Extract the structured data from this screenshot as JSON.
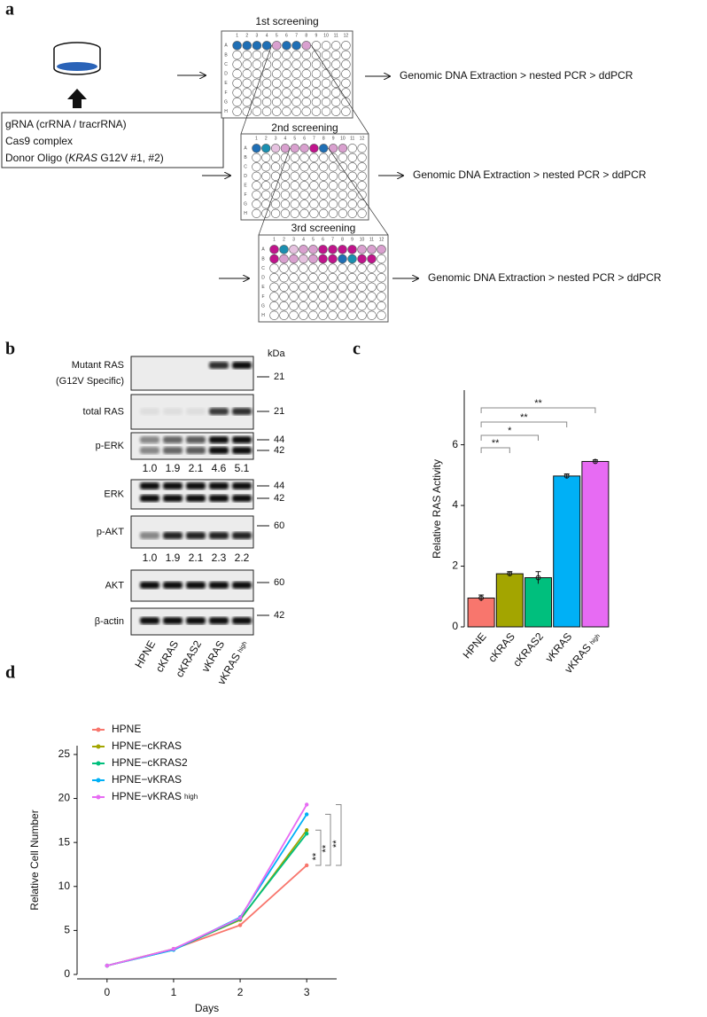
{
  "panel_a": {
    "label": "a",
    "reagents": [
      "gRNA (crRNA / tracrRNA)",
      "Cas9 complex"
    ],
    "donor": [
      "Donor Oligo (",
      "KRAS",
      " G12V #1, #2)"
    ],
    "plate_rows": [
      "A",
      "B",
      "C",
      "D",
      "E",
      "F",
      "G",
      "H"
    ],
    "plate_cols": [
      1,
      2,
      3,
      4,
      5,
      6,
      7,
      8,
      9,
      10,
      11,
      12
    ],
    "screenings": [
      {
        "title": "1st screening",
        "result": "Genomic DNA Extraction > nested PCR > ddPCR"
      },
      {
        "title": "2nd screening",
        "result": "Genomic DNA Extraction > nested PCR > ddPCR"
      },
      {
        "title": "3rd screening",
        "result": "Genomic DNA Extraction > nested PCR > ddPCR"
      }
    ]
  },
  "panel_b": {
    "label": "b",
    "unit": "kDa",
    "blots": [
      {
        "name": [
          "Mutant RAS",
          "(G12V Specific)"
        ],
        "markers": [
          21
        ]
      },
      {
        "name": [
          "total RAS"
        ],
        "markers": [
          21
        ]
      },
      {
        "name": [
          "p-ERK"
        ],
        "markers": [
          44,
          42
        ],
        "quant": [
          "1.0",
          "1.9",
          "2.1",
          "4.6",
          "5.1"
        ]
      },
      {
        "name": [
          "ERK"
        ],
        "markers": [
          44,
          42
        ]
      },
      {
        "name": [
          "p-AKT"
        ],
        "markers": [
          60
        ],
        "quant": [
          "1.0",
          "1.9",
          "2.1",
          "2.3",
          "2.2"
        ]
      },
      {
        "name": [
          "AKT"
        ],
        "markers": [
          60
        ]
      },
      {
        "name": [
          "β-actin"
        ],
        "markers": [
          42
        ]
      }
    ],
    "lanes": [
      "HPNE",
      "cKRAS",
      "cKRAS2",
      "vKRAS",
      "vKRAS"
    ],
    "lane_subscripts": [
      null,
      null,
      null,
      null,
      "high"
    ]
  },
  "chart_data": [
    {
      "type": "bar",
      "panel_label": "c",
      "ylabel": "Relative RAS Activity",
      "categories": [
        "HPNE",
        "cKRAS",
        "cKRAS2",
        "vKRAS",
        "vKRAS"
      ],
      "category_subscripts": [
        null,
        null,
        null,
        null,
        "high"
      ],
      "values": [
        0.95,
        1.75,
        1.62,
        4.97,
        5.45
      ],
      "errors": [
        0.1,
        0.07,
        0.2,
        0.07,
        0.05
      ],
      "colors": [
        "#F8766D",
        "#A3A500",
        "#00BF7D",
        "#00B0F6",
        "#E76BF3"
      ],
      "ylim": [
        0,
        7.8
      ],
      "yticks": [
        0,
        2,
        4,
        6
      ],
      "significance": [
        {
          "label": "**",
          "to": 1
        },
        {
          "label": "*",
          "to": 2
        },
        {
          "label": "**",
          "to": 3
        },
        {
          "label": "**",
          "to": 4
        }
      ]
    },
    {
      "type": "line",
      "panel_label": "d",
      "xlabel": "Days",
      "ylabel": "Relative Cell Number",
      "x": [
        0,
        1,
        2,
        3
      ],
      "xlim": [
        -0.45,
        3.45
      ],
      "xticks": [
        0,
        1,
        2,
        3
      ],
      "ylim": [
        0,
        26
      ],
      "yticks": [
        0,
        5,
        10,
        15,
        20,
        25
      ],
      "series": [
        {
          "name": "HPNE",
          "color": "#F8766D",
          "values": [
            1,
            2.9,
            5.6,
            12.4
          ]
        },
        {
          "name": "HPNE−cKRAS",
          "color": "#A3A500",
          "values": [
            1,
            2.9,
            6.2,
            16.4
          ]
        },
        {
          "name": "HPNE−cKRAS2",
          "color": "#00BF7D",
          "values": [
            1,
            2.8,
            6.3,
            16.0
          ]
        },
        {
          "name": "HPNE−vKRAS",
          "color": "#00B0F6",
          "values": [
            1,
            2.8,
            6.5,
            18.2
          ]
        },
        {
          "name": "HPNE−vKRAS",
          "subscript": "high",
          "color": "#E76BF3",
          "values": [
            1,
            2.9,
            6.4,
            19.3
          ]
        }
      ],
      "significance": [
        {
          "label": "**",
          "to": 1
        },
        {
          "label": "**",
          "to": 3
        },
        {
          "label": "**",
          "to": 4
        }
      ]
    }
  ]
}
